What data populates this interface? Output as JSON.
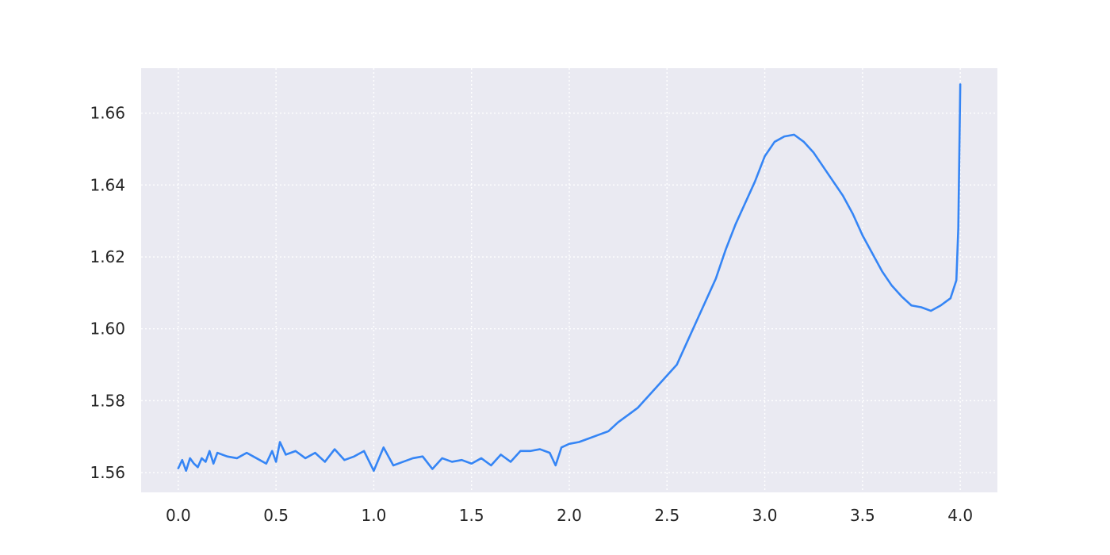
{
  "chart_data": {
    "type": "line",
    "title": "",
    "xlabel": "",
    "ylabel": "",
    "xlim": [
      -0.19,
      4.19
    ],
    "ylim": [
      1.5545,
      1.6725
    ],
    "grid": true,
    "background_color": "#eaeaf2",
    "x_ticks": [
      0.0,
      0.5,
      1.0,
      1.5,
      2.0,
      2.5,
      3.0,
      3.5,
      4.0
    ],
    "x_tick_labels": [
      "0.0",
      "0.5",
      "1.0",
      "1.5",
      "2.0",
      "2.5",
      "3.0",
      "3.5",
      "4.0"
    ],
    "y_ticks": [
      1.56,
      1.58,
      1.6,
      1.62,
      1.64,
      1.66
    ],
    "y_tick_labels": [
      "1.56",
      "1.58",
      "1.60",
      "1.62",
      "1.64",
      "1.66"
    ],
    "series": [
      {
        "name": "",
        "color": "#3585f5",
        "x": [
          0.0,
          0.02,
          0.04,
          0.06,
          0.08,
          0.1,
          0.12,
          0.14,
          0.16,
          0.18,
          0.2,
          0.25,
          0.3,
          0.35,
          0.4,
          0.45,
          0.48,
          0.5,
          0.52,
          0.55,
          0.6,
          0.65,
          0.7,
          0.75,
          0.8,
          0.85,
          0.9,
          0.95,
          1.0,
          1.05,
          1.1,
          1.15,
          1.2,
          1.25,
          1.3,
          1.35,
          1.4,
          1.45,
          1.5,
          1.55,
          1.6,
          1.65,
          1.7,
          1.75,
          1.8,
          1.85,
          1.9,
          1.93,
          1.96,
          2.0,
          2.05,
          2.1,
          2.15,
          2.2,
          2.25,
          2.3,
          2.35,
          2.4,
          2.45,
          2.5,
          2.55,
          2.6,
          2.65,
          2.7,
          2.75,
          2.8,
          2.85,
          2.9,
          2.95,
          3.0,
          3.05,
          3.1,
          3.15,
          3.2,
          3.25,
          3.3,
          3.35,
          3.4,
          3.45,
          3.5,
          3.55,
          3.6,
          3.65,
          3.7,
          3.75,
          3.8,
          3.85,
          3.9,
          3.95,
          3.98,
          3.99,
          4.0
        ],
        "y": [
          1.5612,
          1.5635,
          1.5605,
          1.564,
          1.5625,
          1.5615,
          1.564,
          1.563,
          1.566,
          1.5625,
          1.5655,
          1.5645,
          1.564,
          1.5655,
          1.564,
          1.5625,
          1.566,
          1.563,
          1.5685,
          1.565,
          1.566,
          1.564,
          1.5655,
          1.563,
          1.5665,
          1.5635,
          1.5645,
          1.566,
          1.5605,
          1.567,
          1.562,
          1.563,
          1.564,
          1.5645,
          1.561,
          1.564,
          1.563,
          1.5635,
          1.5625,
          1.564,
          1.562,
          1.565,
          1.563,
          1.566,
          1.566,
          1.5665,
          1.5655,
          1.562,
          1.567,
          1.568,
          1.5685,
          1.5695,
          1.5705,
          1.5715,
          1.574,
          1.576,
          1.578,
          1.581,
          1.584,
          1.587,
          1.59,
          1.596,
          1.602,
          1.608,
          1.614,
          1.622,
          1.629,
          1.635,
          1.641,
          1.648,
          1.652,
          1.6535,
          1.654,
          1.652,
          1.649,
          1.645,
          1.641,
          1.637,
          1.632,
          1.626,
          1.621,
          1.616,
          1.612,
          1.609,
          1.6065,
          1.606,
          1.605,
          1.6065,
          1.6085,
          1.6135,
          1.628,
          1.668
        ]
      }
    ]
  }
}
